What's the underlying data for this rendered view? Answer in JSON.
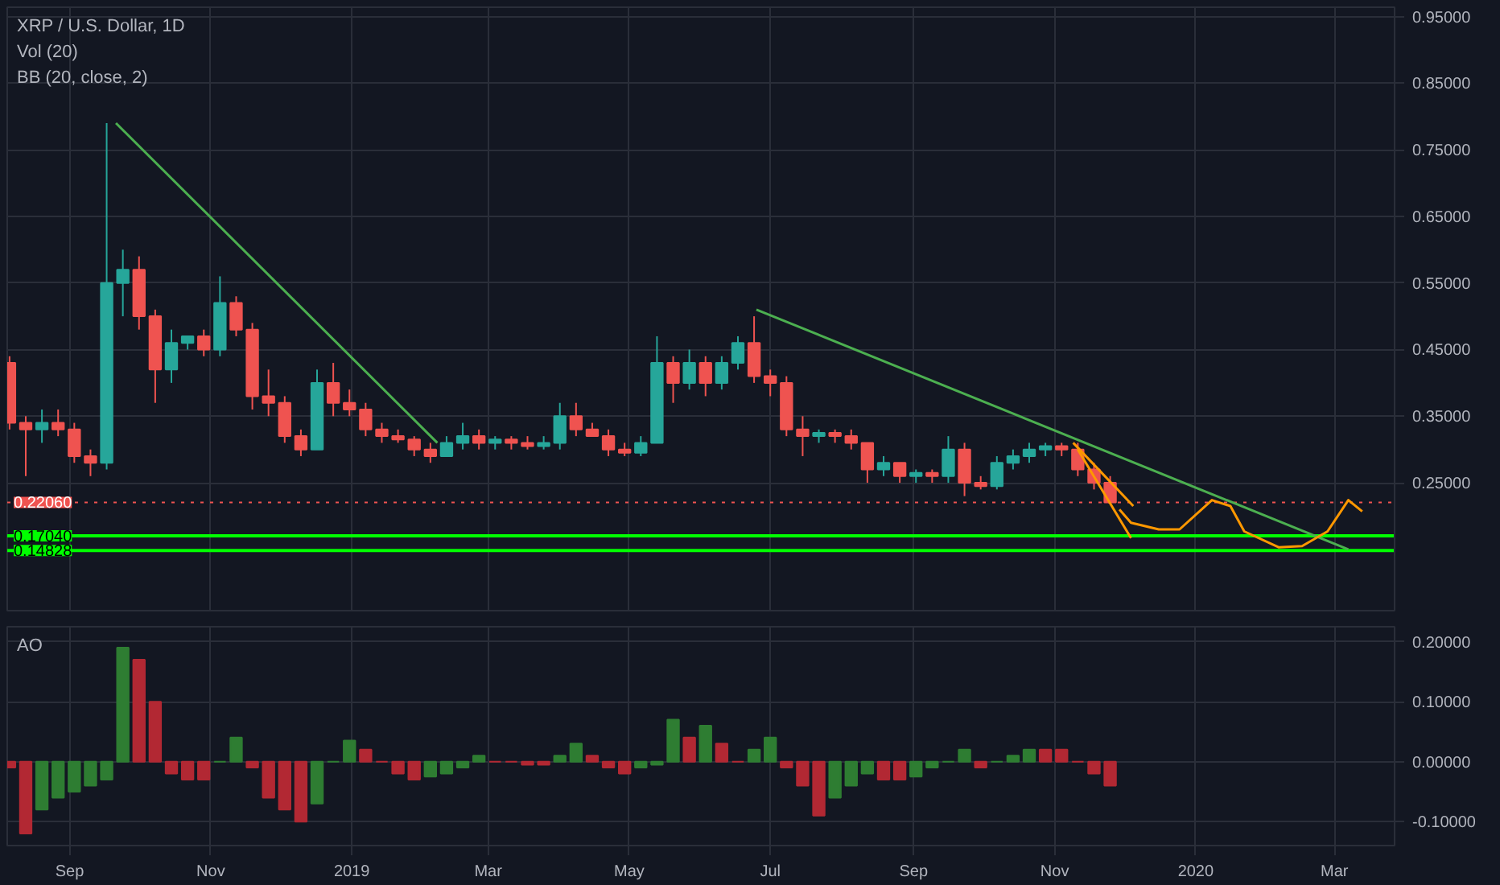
{
  "chart_data": [
    {
      "type": "candlestick",
      "title": "XRP / U.S. Dollar, 1D",
      "annotations": [
        "Vol (20)",
        "BB (20, close, 2)"
      ],
      "x": [
        "2018-08-06",
        "2018-08-13",
        "2018-08-20",
        "2018-08-27",
        "2018-09-03",
        "2018-09-10",
        "2018-09-17",
        "2018-09-24",
        "2018-10-01",
        "2018-10-08",
        "2018-10-15",
        "2018-10-22",
        "2018-10-29",
        "2018-11-05",
        "2018-11-12",
        "2018-11-19",
        "2018-11-26",
        "2018-12-03",
        "2018-12-10",
        "2018-12-17",
        "2018-12-24",
        "2018-12-31",
        "2019-01-07",
        "2019-01-14",
        "2019-01-21",
        "2019-01-28",
        "2019-02-04",
        "2019-02-11",
        "2019-02-18",
        "2019-02-25",
        "2019-03-04",
        "2019-03-11",
        "2019-03-18",
        "2019-03-25",
        "2019-04-01",
        "2019-04-08",
        "2019-04-15",
        "2019-04-22",
        "2019-04-29",
        "2019-05-06",
        "2019-05-13",
        "2019-05-20",
        "2019-05-27",
        "2019-06-03",
        "2019-06-10",
        "2019-06-17",
        "2019-06-24",
        "2019-07-01",
        "2019-07-08",
        "2019-07-15",
        "2019-07-22",
        "2019-07-29",
        "2019-08-05",
        "2019-08-12",
        "2019-08-19",
        "2019-08-26",
        "2019-09-02",
        "2019-09-09",
        "2019-09-16",
        "2019-09-23",
        "2019-09-30",
        "2019-10-07",
        "2019-10-14",
        "2019-10-21",
        "2019-10-28",
        "2019-11-04",
        "2019-11-11",
        "2019-11-18",
        "2019-11-25"
      ],
      "ohlc": [
        [
          0.43,
          0.44,
          0.33,
          0.34
        ],
        [
          0.34,
          0.35,
          0.26,
          0.33
        ],
        [
          0.33,
          0.36,
          0.31,
          0.34
        ],
        [
          0.34,
          0.36,
          0.32,
          0.33
        ],
        [
          0.33,
          0.34,
          0.28,
          0.29
        ],
        [
          0.29,
          0.3,
          0.26,
          0.28
        ],
        [
          0.28,
          0.79,
          0.27,
          0.55
        ],
        [
          0.55,
          0.6,
          0.5,
          0.57
        ],
        [
          0.57,
          0.59,
          0.48,
          0.5
        ],
        [
          0.5,
          0.51,
          0.37,
          0.42
        ],
        [
          0.42,
          0.48,
          0.4,
          0.46
        ],
        [
          0.46,
          0.47,
          0.45,
          0.47
        ],
        [
          0.47,
          0.48,
          0.44,
          0.45
        ],
        [
          0.45,
          0.56,
          0.44,
          0.52
        ],
        [
          0.52,
          0.53,
          0.47,
          0.48
        ],
        [
          0.48,
          0.49,
          0.36,
          0.38
        ],
        [
          0.38,
          0.42,
          0.35,
          0.37
        ],
        [
          0.37,
          0.38,
          0.31,
          0.32
        ],
        [
          0.32,
          0.33,
          0.29,
          0.3
        ],
        [
          0.3,
          0.42,
          0.3,
          0.4
        ],
        [
          0.4,
          0.43,
          0.35,
          0.37
        ],
        [
          0.37,
          0.39,
          0.35,
          0.36
        ],
        [
          0.36,
          0.37,
          0.32,
          0.33
        ],
        [
          0.33,
          0.34,
          0.31,
          0.32
        ],
        [
          0.32,
          0.33,
          0.31,
          0.315
        ],
        [
          0.315,
          0.32,
          0.29,
          0.3
        ],
        [
          0.3,
          0.31,
          0.28,
          0.29
        ],
        [
          0.29,
          0.32,
          0.29,
          0.31
        ],
        [
          0.31,
          0.34,
          0.3,
          0.32
        ],
        [
          0.32,
          0.33,
          0.3,
          0.31
        ],
        [
          0.31,
          0.32,
          0.3,
          0.315
        ],
        [
          0.315,
          0.32,
          0.3,
          0.31
        ],
        [
          0.31,
          0.32,
          0.3,
          0.305
        ],
        [
          0.305,
          0.32,
          0.3,
          0.31
        ],
        [
          0.31,
          0.37,
          0.3,
          0.35
        ],
        [
          0.35,
          0.37,
          0.32,
          0.33
        ],
        [
          0.33,
          0.34,
          0.32,
          0.32
        ],
        [
          0.32,
          0.33,
          0.29,
          0.3
        ],
        [
          0.3,
          0.31,
          0.29,
          0.295
        ],
        [
          0.295,
          0.32,
          0.29,
          0.31
        ],
        [
          0.31,
          0.47,
          0.31,
          0.43
        ],
        [
          0.43,
          0.44,
          0.37,
          0.4
        ],
        [
          0.4,
          0.45,
          0.39,
          0.43
        ],
        [
          0.43,
          0.44,
          0.38,
          0.4
        ],
        [
          0.4,
          0.44,
          0.39,
          0.43
        ],
        [
          0.43,
          0.47,
          0.42,
          0.46
        ],
        [
          0.46,
          0.5,
          0.4,
          0.41
        ],
        [
          0.41,
          0.42,
          0.38,
          0.4
        ],
        [
          0.4,
          0.41,
          0.32,
          0.33
        ],
        [
          0.33,
          0.35,
          0.29,
          0.32
        ],
        [
          0.32,
          0.33,
          0.31,
          0.325
        ],
        [
          0.325,
          0.33,
          0.31,
          0.32
        ],
        [
          0.32,
          0.33,
          0.3,
          0.31
        ],
        [
          0.31,
          0.31,
          0.25,
          0.27
        ],
        [
          0.27,
          0.29,
          0.26,
          0.28
        ],
        [
          0.28,
          0.28,
          0.25,
          0.26
        ],
        [
          0.26,
          0.27,
          0.25,
          0.265
        ],
        [
          0.265,
          0.27,
          0.25,
          0.26
        ],
        [
          0.26,
          0.32,
          0.25,
          0.3
        ],
        [
          0.3,
          0.31,
          0.23,
          0.25
        ],
        [
          0.25,
          0.26,
          0.24,
          0.245
        ],
        [
          0.245,
          0.29,
          0.24,
          0.28
        ],
        [
          0.28,
          0.3,
          0.27,
          0.29
        ],
        [
          0.29,
          0.31,
          0.28,
          0.3
        ],
        [
          0.3,
          0.31,
          0.29,
          0.305
        ],
        [
          0.305,
          0.31,
          0.29,
          0.3
        ],
        [
          0.3,
          0.31,
          0.26,
          0.27
        ],
        [
          0.27,
          0.28,
          0.24,
          0.25
        ],
        [
          0.25,
          0.26,
          0.22,
          0.2206
        ]
      ],
      "colors": [
        "#ef5350",
        "#ef5350",
        "#26a69a",
        "#ef5350",
        "#ef5350",
        "#ef5350",
        "#26a69a",
        "#26a69a",
        "#ef5350",
        "#ef5350",
        "#26a69a",
        "#26a69a",
        "#ef5350",
        "#26a69a",
        "#ef5350",
        "#ef5350",
        "#ef5350",
        "#ef5350",
        "#ef5350",
        "#26a69a",
        "#ef5350",
        "#ef5350",
        "#ef5350",
        "#ef5350",
        "#ef5350",
        "#ef5350",
        "#ef5350",
        "#26a69a",
        "#26a69a",
        "#ef5350",
        "#26a69a",
        "#ef5350",
        "#ef5350",
        "#26a69a",
        "#26a69a",
        "#ef5350",
        "#ef5350",
        "#ef5350",
        "#ef5350",
        "#26a69a",
        "#26a69a",
        "#ef5350",
        "#26a69a",
        "#ef5350",
        "#26a69a",
        "#26a69a",
        "#ef5350",
        "#ef5350",
        "#ef5350",
        "#ef5350",
        "#26a69a",
        "#ef5350",
        "#ef5350",
        "#ef5350",
        "#26a69a",
        "#ef5350",
        "#26a69a",
        "#ef5350",
        "#26a69a",
        "#ef5350",
        "#ef5350",
        "#26a69a",
        "#26a69a",
        "#26a69a",
        "#26a69a",
        "#ef5350",
        "#ef5350",
        "#ef5350",
        "#ef5350"
      ],
      "series": [
        {
          "type": "line",
          "color": "#4caf50",
          "x": [
            "2018-09-21",
            "2019-02-07"
          ],
          "values": [
            0.79,
            0.31
          ]
        },
        {
          "type": "line",
          "color": "#4caf50",
          "x": [
            "2019-06-25",
            "2020-03-07"
          ],
          "values": [
            0.51,
            0.15
          ]
        },
        {
          "type": "line",
          "color": "#ff9800",
          "x": [
            "2019-11-09",
            "2019-12-05"
          ],
          "values": [
            0.31,
            0.215
          ]
        },
        {
          "type": "line",
          "color": "#ff9800",
          "x": [
            "2019-11-11",
            "2019-12-04"
          ],
          "values": [
            0.3,
            0.167
          ]
        },
        {
          "type": "line",
          "color": "#ff9800",
          "x": [
            "2019-11-29",
            "2019-12-04",
            "2019-12-16",
            "2019-12-25",
            "2020-01-08",
            "2020-01-16",
            "2020-01-22",
            "2020-02-06",
            "2020-02-16",
            "2020-02-27",
            "2020-03-07",
            "2020-03-13"
          ],
          "values": [
            0.21,
            0.19,
            0.18,
            0.18,
            0.224,
            0.215,
            0.177,
            0.153,
            0.155,
            0.177,
            0.224,
            0.207
          ]
        }
      ],
      "ref_lines": [
        {
          "axis": "y",
          "value": 0.2206,
          "label": "0.22060",
          "color": "#ef5350",
          "line_style": "dotted"
        },
        {
          "axis": "y",
          "value": 0.1704,
          "label": "0.17040",
          "color": "#00ff00"
        },
        {
          "axis": "y",
          "value": 0.14828,
          "label": "0.14828",
          "color": "#00ff00"
        }
      ],
      "xlim": [
        "2018-08-05",
        "2020-03-27"
      ],
      "xticks": [
        {
          "value": "2018-09-01",
          "label": null
        },
        {
          "value": "2018-11-01",
          "label": null
        },
        {
          "value": "2019-01-01",
          "label": null
        },
        {
          "value": "2019-03-01",
          "label": null
        },
        {
          "value": "2019-05-01",
          "label": null
        },
        {
          "value": "2019-07-01",
          "label": null
        },
        {
          "value": "2019-09-01",
          "label": null
        },
        {
          "value": "2019-11-01",
          "label": null
        },
        {
          "value": "2020-01-01",
          "label": null
        },
        {
          "value": "2020-03-01",
          "label": null
        }
      ],
      "ylim": [
        0.058,
        0.964
      ],
      "yticks": [
        {
          "value": 0.25,
          "label": "0.25000"
        },
        {
          "value": 0.35,
          "label": "0.35000"
        },
        {
          "value": 0.45,
          "label": "0.45000"
        },
        {
          "value": 0.55,
          "label": "0.55000"
        },
        {
          "value": 0.65,
          "label": "0.65000"
        },
        {
          "value": 0.75,
          "label": "0.75000"
        },
        {
          "value": 0.85,
          "label": "0.85000"
        },
        {
          "value": 0.95,
          "label": "0.95000"
        }
      ],
      "grid": true,
      "tick_labels": "y"
    },
    {
      "type": "bar",
      "title": "AO",
      "x": [
        "2018-08-06",
        "2018-08-13",
        "2018-08-20",
        "2018-08-27",
        "2018-09-03",
        "2018-09-10",
        "2018-09-17",
        "2018-09-24",
        "2018-10-01",
        "2018-10-08",
        "2018-10-15",
        "2018-10-22",
        "2018-10-29",
        "2018-11-05",
        "2018-11-12",
        "2018-11-19",
        "2018-11-26",
        "2018-12-03",
        "2018-12-10",
        "2018-12-17",
        "2018-12-24",
        "2018-12-31",
        "2019-01-07",
        "2019-01-14",
        "2019-01-21",
        "2019-01-28",
        "2019-02-04",
        "2019-02-11",
        "2019-02-18",
        "2019-02-25",
        "2019-03-04",
        "2019-03-11",
        "2019-03-18",
        "2019-03-25",
        "2019-04-01",
        "2019-04-08",
        "2019-04-15",
        "2019-04-22",
        "2019-04-29",
        "2019-05-06",
        "2019-05-13",
        "2019-05-20",
        "2019-05-27",
        "2019-06-03",
        "2019-06-10",
        "2019-06-17",
        "2019-06-24",
        "2019-07-01",
        "2019-07-08",
        "2019-07-15",
        "2019-07-22",
        "2019-07-29",
        "2019-08-05",
        "2019-08-12",
        "2019-08-19",
        "2019-08-26",
        "2019-09-02",
        "2019-09-09",
        "2019-09-16",
        "2019-09-23",
        "2019-09-30",
        "2019-10-07",
        "2019-10-14",
        "2019-10-21",
        "2019-10-28",
        "2019-11-04",
        "2019-11-11",
        "2019-11-18",
        "2019-11-25"
      ],
      "values": [
        -0.01,
        -0.12,
        -0.08,
        -0.06,
        -0.05,
        -0.04,
        -0.03,
        0.19,
        0.17,
        0.1,
        -0.02,
        -0.03,
        -0.03,
        0.0,
        0.04,
        -0.01,
        -0.06,
        -0.08,
        -0.1,
        -0.07,
        0.0,
        0.035,
        0.02,
        0.0,
        -0.02,
        -0.03,
        -0.025,
        -0.02,
        -0.01,
        0.01,
        0.0,
        0.0,
        -0.005,
        -0.005,
        0.01,
        0.03,
        0.01,
        -0.01,
        -0.02,
        -0.01,
        -0.005,
        0.07,
        0.04,
        0.06,
        0.03,
        0.0,
        0.02,
        0.04,
        -0.01,
        -0.04,
        -0.09,
        -0.06,
        -0.04,
        -0.02,
        -0.03,
        -0.03,
        -0.025,
        -0.01,
        0.0,
        0.02,
        -0.01,
        0.0,
        0.01,
        0.02,
        0.02,
        0.02,
        0.0,
        -0.02,
        -0.04
      ],
      "colors": [
        "#b22833",
        "#b22833",
        "#2e7d32",
        "#2e7d32",
        "#2e7d32",
        "#2e7d32",
        "#2e7d32",
        "#2e7d32",
        "#b22833",
        "#b22833",
        "#b22833",
        "#b22833",
        "#b22833",
        "#2e7d32",
        "#2e7d32",
        "#b22833",
        "#b22833",
        "#b22833",
        "#b22833",
        "#2e7d32",
        "#2e7d32",
        "#2e7d32",
        "#b22833",
        "#b22833",
        "#b22833",
        "#b22833",
        "#2e7d32",
        "#2e7d32",
        "#2e7d32",
        "#2e7d32",
        "#b22833",
        "#b22833",
        "#b22833",
        "#b22833",
        "#2e7d32",
        "#2e7d32",
        "#b22833",
        "#b22833",
        "#b22833",
        "#2e7d32",
        "#2e7d32",
        "#2e7d32",
        "#b22833",
        "#2e7d32",
        "#b22833",
        "#b22833",
        "#2e7d32",
        "#2e7d32",
        "#b22833",
        "#b22833",
        "#b22833",
        "#2e7d32",
        "#2e7d32",
        "#2e7d32",
        "#b22833",
        "#b22833",
        "#2e7d32",
        "#2e7d32",
        "#2e7d32",
        "#2e7d32",
        "#b22833",
        "#2e7d32",
        "#2e7d32",
        "#2e7d32",
        "#b22833",
        "#b22833",
        "#b22833",
        "#b22833",
        "#b22833"
      ],
      "xlim": [
        "2018-08-05",
        "2020-03-27"
      ],
      "xticks": [
        {
          "value": "2018-09-01",
          "label": "Sep"
        },
        {
          "value": "2018-11-01",
          "label": "Nov"
        },
        {
          "value": "2019-01-01",
          "label": "2019"
        },
        {
          "value": "2019-03-01",
          "label": "Mar"
        },
        {
          "value": "2019-05-01",
          "label": "May"
        },
        {
          "value": "2019-07-01",
          "label": "Jul"
        },
        {
          "value": "2019-09-01",
          "label": "Sep"
        },
        {
          "value": "2019-11-01",
          "label": "Nov"
        },
        {
          "value": "2020-01-01",
          "label": "2020"
        },
        {
          "value": "2020-03-01",
          "label": "Mar"
        }
      ],
      "ylim": [
        -0.14,
        0.225
      ],
      "yticks": [
        {
          "value": -0.1,
          "label": "-0.10000"
        },
        {
          "value": 0.0,
          "label": "0.00000"
        },
        {
          "value": 0.1,
          "label": "0.10000"
        },
        {
          "value": 0.2,
          "label": "0.20000"
        }
      ],
      "grid": true
    }
  ]
}
